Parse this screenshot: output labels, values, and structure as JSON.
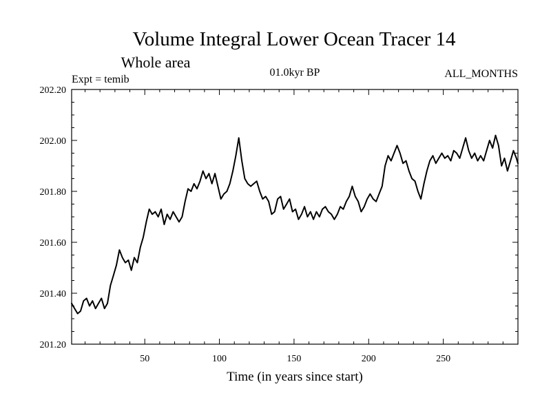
{
  "chart_data": {
    "type": "line",
    "title": "Volume Integral Lower Ocean Tracer 14",
    "subtitle": "Whole area",
    "annotation_left": "Expt = temib",
    "annotation_center": "01.0kyr BP",
    "annotation_right": "ALL_MONTHS",
    "xlabel": "Time (in years since start)",
    "ylabel": "",
    "xlim": [
      1,
      300
    ],
    "ylim": [
      201.2,
      202.2
    ],
    "x_ticks": [
      50,
      100,
      150,
      200,
      250
    ],
    "x_tick_labels": [
      "50",
      "100",
      "150",
      "200",
      "250"
    ],
    "y_ticks": [
      201.2,
      201.4,
      201.6,
      201.8,
      202.0,
      202.2
    ],
    "y_tick_labels": [
      "201.20",
      "201.40",
      "201.60",
      "201.80",
      "202.00",
      "202.20"
    ],
    "grid": false,
    "series": [
      {
        "name": "Volume Integral Lower Ocean Tracer 14",
        "color": "#000000",
        "points": [
          [
            1,
            201.36
          ],
          [
            3,
            201.34
          ],
          [
            5,
            201.32
          ],
          [
            7,
            201.33
          ],
          [
            9,
            201.37
          ],
          [
            11,
            201.38
          ],
          [
            13,
            201.35
          ],
          [
            15,
            201.37
          ],
          [
            17,
            201.34
          ],
          [
            19,
            201.36
          ],
          [
            21,
            201.38
          ],
          [
            23,
            201.34
          ],
          [
            25,
            201.36
          ],
          [
            27,
            201.43
          ],
          [
            29,
            201.47
          ],
          [
            31,
            201.51
          ],
          [
            33,
            201.57
          ],
          [
            35,
            201.54
          ],
          [
            37,
            201.52
          ],
          [
            39,
            201.53
          ],
          [
            41,
            201.49
          ],
          [
            43,
            201.54
          ],
          [
            45,
            201.52
          ],
          [
            47,
            201.58
          ],
          [
            49,
            201.62
          ],
          [
            51,
            201.68
          ],
          [
            53,
            201.73
          ],
          [
            55,
            201.71
          ],
          [
            57,
            201.72
          ],
          [
            59,
            201.7
          ],
          [
            61,
            201.73
          ],
          [
            63,
            201.67
          ],
          [
            65,
            201.71
          ],
          [
            67,
            201.69
          ],
          [
            69,
            201.72
          ],
          [
            71,
            201.7
          ],
          [
            73,
            201.68
          ],
          [
            75,
            201.7
          ],
          [
            77,
            201.76
          ],
          [
            79,
            201.81
          ],
          [
            81,
            201.8
          ],
          [
            83,
            201.83
          ],
          [
            85,
            201.81
          ],
          [
            87,
            201.84
          ],
          [
            89,
            201.88
          ],
          [
            91,
            201.85
          ],
          [
            93,
            201.87
          ],
          [
            95,
            201.83
          ],
          [
            97,
            201.87
          ],
          [
            99,
            201.82
          ],
          [
            101,
            201.77
          ],
          [
            103,
            201.79
          ],
          [
            105,
            201.8
          ],
          [
            107,
            201.83
          ],
          [
            109,
            201.88
          ],
          [
            111,
            201.94
          ],
          [
            113,
            202.01
          ],
          [
            115,
            201.92
          ],
          [
            117,
            201.85
          ],
          [
            119,
            201.83
          ],
          [
            121,
            201.82
          ],
          [
            123,
            201.83
          ],
          [
            125,
            201.84
          ],
          [
            127,
            201.8
          ],
          [
            129,
            201.77
          ],
          [
            131,
            201.78
          ],
          [
            133,
            201.76
          ],
          [
            135,
            201.71
          ],
          [
            137,
            201.72
          ],
          [
            139,
            201.77
          ],
          [
            141,
            201.78
          ],
          [
            143,
            201.73
          ],
          [
            145,
            201.75
          ],
          [
            147,
            201.77
          ],
          [
            149,
            201.72
          ],
          [
            151,
            201.73
          ],
          [
            153,
            201.69
          ],
          [
            155,
            201.71
          ],
          [
            157,
            201.74
          ],
          [
            159,
            201.7
          ],
          [
            161,
            201.72
          ],
          [
            163,
            201.69
          ],
          [
            165,
            201.72
          ],
          [
            167,
            201.7
          ],
          [
            169,
            201.73
          ],
          [
            171,
            201.74
          ],
          [
            173,
            201.72
          ],
          [
            175,
            201.71
          ],
          [
            177,
            201.69
          ],
          [
            179,
            201.71
          ],
          [
            181,
            201.74
          ],
          [
            183,
            201.73
          ],
          [
            185,
            201.76
          ],
          [
            187,
            201.78
          ],
          [
            189,
            201.82
          ],
          [
            191,
            201.78
          ],
          [
            193,
            201.76
          ],
          [
            195,
            201.72
          ],
          [
            197,
            201.74
          ],
          [
            199,
            201.77
          ],
          [
            201,
            201.79
          ],
          [
            203,
            201.77
          ],
          [
            205,
            201.76
          ],
          [
            207,
            201.79
          ],
          [
            209,
            201.82
          ],
          [
            211,
            201.9
          ],
          [
            213,
            201.94
          ],
          [
            215,
            201.92
          ],
          [
            217,
            201.95
          ],
          [
            219,
            201.98
          ],
          [
            221,
            201.95
          ],
          [
            223,
            201.91
          ],
          [
            225,
            201.92
          ],
          [
            227,
            201.88
          ],
          [
            229,
            201.85
          ],
          [
            231,
            201.84
          ],
          [
            233,
            201.8
          ],
          [
            235,
            201.77
          ],
          [
            237,
            201.83
          ],
          [
            239,
            201.88
          ],
          [
            241,
            201.92
          ],
          [
            243,
            201.94
          ],
          [
            245,
            201.91
          ],
          [
            247,
            201.93
          ],
          [
            249,
            201.95
          ],
          [
            251,
            201.93
          ],
          [
            253,
            201.94
          ],
          [
            255,
            201.92
          ],
          [
            257,
            201.96
          ],
          [
            259,
            201.95
          ],
          [
            261,
            201.93
          ],
          [
            263,
            201.97
          ],
          [
            265,
            202.01
          ],
          [
            267,
            201.96
          ],
          [
            269,
            201.93
          ],
          [
            271,
            201.95
          ],
          [
            273,
            201.92
          ],
          [
            275,
            201.94
          ],
          [
            277,
            201.92
          ],
          [
            279,
            201.96
          ],
          [
            281,
            202.0
          ],
          [
            283,
            201.97
          ],
          [
            285,
            202.02
          ],
          [
            287,
            201.98
          ],
          [
            289,
            201.9
          ],
          [
            291,
            201.93
          ],
          [
            293,
            201.88
          ],
          [
            295,
            201.92
          ],
          [
            297,
            201.96
          ],
          [
            299,
            201.93
          ],
          [
            300,
            201.91
          ]
        ]
      }
    ]
  }
}
